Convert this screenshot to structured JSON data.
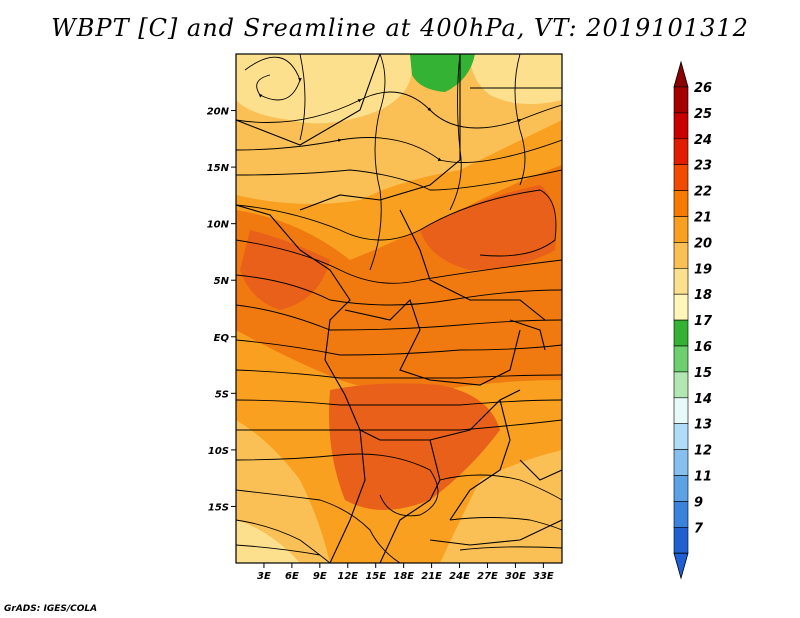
{
  "title": "WBPT [C] and Sreamline at 400hPa, VT: 2019101312",
  "credit": "GrADS: IGES/COLA",
  "map": {
    "lon_labels": [
      "3E",
      "6E",
      "9E",
      "12E",
      "15E",
      "18E",
      "21E",
      "24E",
      "27E",
      "30E",
      "33E"
    ],
    "lon_values": [
      3,
      6,
      9,
      12,
      15,
      18,
      21,
      24,
      27,
      30,
      33
    ],
    "lat_labels": [
      "20N",
      "15N",
      "10N",
      "5N",
      "EQ",
      "5S",
      "10S",
      "15S"
    ],
    "lat_values": [
      20,
      15,
      10,
      5,
      0,
      -5,
      -10,
      -15
    ],
    "lon_range": [
      0,
      35
    ],
    "lat_range": [
      -20,
      25
    ]
  },
  "colorbar": {
    "labels": [
      "26",
      "25",
      "24",
      "23",
      "22",
      "21",
      "20",
      "19",
      "18",
      "17",
      "16",
      "15",
      "14",
      "13",
      "12",
      "11",
      "9",
      "7"
    ],
    "colors": [
      "#a50000",
      "#c80000",
      "#e11c00",
      "#f04b00",
      "#f77a00",
      "#f9a020",
      "#fbc055",
      "#fde08e",
      "#fff7b9",
      "#33b233",
      "#6ecf6e",
      "#b2e6b2",
      "#e8f9f9",
      "#b0dcf7",
      "#87c0ef",
      "#5ea2e6",
      "#3a82dc",
      "#2060d0"
    ],
    "top_color": "#8b0000",
    "bottom_color": "#1e5fd6"
  },
  "colors": {
    "field_base": "#f9a020",
    "field_hot": "#f07a10",
    "field_hotter": "#e8601a",
    "field_cool": "#fbc055",
    "field_light": "#fde08e",
    "field_green": "#33b233"
  }
}
